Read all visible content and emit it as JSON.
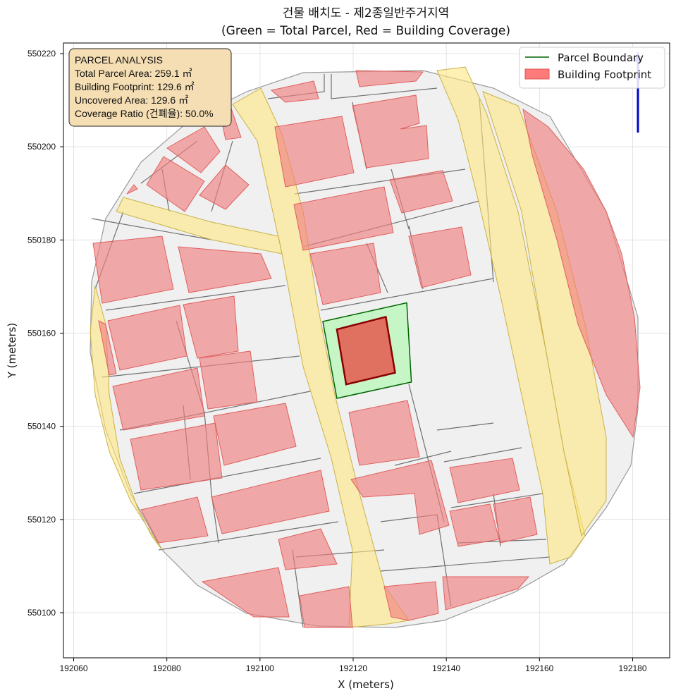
{
  "chart_data": {
    "type": "map",
    "title": "건물 배치도 - 제2종일반주거지역",
    "subtitle": "(Green = Total Parcel, Red = Building Coverage)",
    "xlabel": "X (meters)",
    "ylabel": "Y (meters)",
    "xlim": [
      192060,
      192188
    ],
    "ylim": [
      550090,
      550222
    ],
    "xticks": [
      "192060",
      "192080",
      "192100",
      "192120",
      "192140",
      "192160",
      "192180"
    ],
    "yticks": [
      "550100",
      "550120",
      "550140",
      "550160",
      "550180",
      "550200",
      "550220"
    ],
    "grid": true,
    "legend": {
      "placement": "top-right",
      "entries": [
        {
          "label": "Parcel Boundary",
          "color": "#006400",
          "kind": "line"
        },
        {
          "label": "Building Footprint",
          "color": "#ff6b6b",
          "kind": "patch"
        }
      ]
    },
    "info_box": {
      "lines": [
        "PARCEL ANALYSIS",
        "Total Parcel Area: 259.1 ㎡",
        "Building Footprint: 129.6 ㎡",
        "Uncovered Area: 129.6 ㎡",
        "Coverage Ratio (건폐율): 50.0%"
      ]
    },
    "target_parcel": {
      "area_m2": 259.1,
      "polygon": [
        [
          192113.5,
          550162.5
        ],
        [
          192131.5,
          550166.5
        ],
        [
          192132.5,
          550149.5
        ],
        [
          192116.5,
          550146.0
        ]
      ]
    },
    "target_building": {
      "area_m2": 129.6,
      "polygon": [
        [
          192116.5,
          550160.8
        ],
        [
          192127.0,
          550163.5
        ],
        [
          192129.0,
          550151.5
        ],
        [
          192118.5,
          550149.0
        ]
      ]
    },
    "coverage_ratio_percent": 50.0
  },
  "colors": {
    "parcel_edge": "#006400",
    "parcel_fill": "#c6f5c6",
    "building_edge": "#8b0000",
    "building_fill": "#e07060",
    "context_building": "#f08080",
    "road": "#ffe680",
    "area_fill": "#f0f0f0",
    "north_arrow": "#0000cc"
  }
}
